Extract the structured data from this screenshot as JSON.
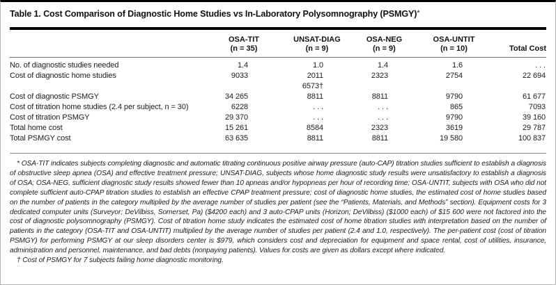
{
  "title": {
    "text": "Table 1. Cost Comparison of Diagnostic Home Studies vs In-Laboratory Polysomnography (PSMGY)",
    "marker": "*"
  },
  "table": {
    "columns": [
      {
        "name": "",
        "sub": ""
      },
      {
        "name": "OSA-TIT",
        "sub": "(n = 35)"
      },
      {
        "name": "UNSAT-DIAG",
        "sub": "(n = 9)"
      },
      {
        "name": "OSA-NEG",
        "sub": "(n = 9)"
      },
      {
        "name": "OSA-UNTIT",
        "sub": "(n = 10)"
      },
      {
        "name": "Total Cost",
        "sub": ""
      }
    ],
    "rows": [
      {
        "label": "No. of diagnostic studies needed",
        "values": [
          "1.4",
          "1.0",
          "1.4",
          "1.6",
          ". . ."
        ]
      },
      {
        "label": "Cost of diagnostic home studies",
        "values": [
          "9033",
          "2011\n6573†",
          "2323",
          "2754",
          "22 694"
        ]
      },
      {
        "label": "Cost of diagnostic PSMGY",
        "values": [
          "34 265",
          "8811",
          "8811",
          "9790",
          "61 677"
        ]
      },
      {
        "label": "Cost of titration home studies (2.4 per subject, n = 30)",
        "values": [
          "6228",
          ". . .",
          ". . .",
          "865",
          "7093"
        ]
      },
      {
        "label": "Cost of titration PSMGY",
        "values": [
          "29 370",
          ". . .",
          ". . .",
          "9790",
          "39 160"
        ]
      },
      {
        "label": "Total home cost",
        "values": [
          "15 261",
          "8584",
          "2323",
          "3619",
          "29 787"
        ]
      },
      {
        "label": "Total PSMGY cost",
        "values": [
          "63 635",
          "8811",
          "8811",
          "19 580",
          "100 837"
        ]
      }
    ]
  },
  "footnotes": {
    "asterisk": "* OSA-TIT indicates subjects completing diagnostic and automatic titrating continuous positive airway pressure (auto-CAP) titration studies sufficient to establish a diagnosis of obstructive sleep apnea (OSA) and effective treatment pressure; UNSAT-DIAG, subjects whose home diagnostic study results were unsatisfactory to establish a diagnosis of OSA; OSA-NEG, sufficient diagnostic study results showed fewer than 10 apneas and/or hypopneas per hour of recording time; OSA-UNTIT, subjects with OSA who did not complete sufficient auto-CPAP titration studies to establish an effective CPAP treatment pressure; cost of diagnostic home studies, the estimated cost of home studies based on the number of patients in the category multiplied by the average number of studies per patient (see the “Patients, Materials, and Methods” section). Equipment costs for 3 dedicated computer units (Surveyor; DeVilbiss, Somerset, Pa) ($4200 each) and 3 auto-CPAP units (Horizon; DeVilbiss) ($1000 each) of $15 600 were not factored into the cost of diagnostic polysomnography (PSMGY). Cost of titration home study indicates the estimated cost of home titration studies with interpretation based on the number of patients in the category (OSA-TIT and OSA-UNTIT) multiplied by the average number of studies per patient (2.4 and 1.0, respectively). The per-patient cost (cost of titration PSMGY) for performing PSMGY at our sleep disorders center is $979, which considers cost and depreciation for equipment and space rental, cost of utilities, insurance, administration and personnel, maintenance, and bad debts (nonpaying patients). Values for costs are given as dollars except where indicated.",
    "dagger": "† Cost of PSMGY for 7 subjects failing home diagnostic monitoring."
  }
}
